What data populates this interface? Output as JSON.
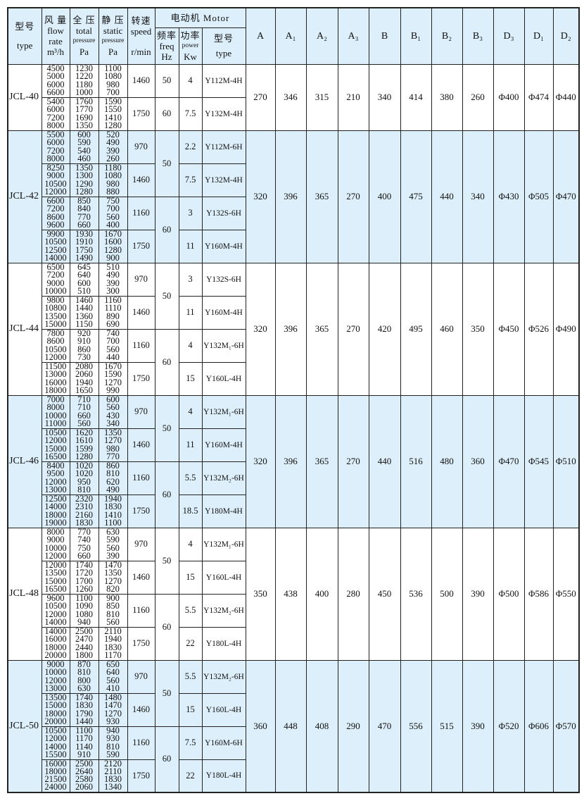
{
  "header": {
    "type": {
      "zh": "型号",
      "en": "type"
    },
    "flow": {
      "zh": "风 量",
      "en1": "flow",
      "en2": "rate",
      "unit": "m³/h"
    },
    "total": {
      "zh": "全 压",
      "en1": "total",
      "en2": "pressure",
      "unit": "Pa"
    },
    "static": {
      "zh": "静 压",
      "en1": "static",
      "en2": "pressure",
      "unit": "Pa"
    },
    "speed": {
      "zh": "转速",
      "en": "speed",
      "unit": "r/min"
    },
    "motor": {
      "title": "电动机 Motor",
      "freq": {
        "zh": "频率",
        "en": "freq",
        "unit": "Hz"
      },
      "power": {
        "zh": "功率",
        "en": "power",
        "unit": "Kw"
      },
      "type": {
        "zh": "型号",
        "en": "type"
      }
    },
    "dims": [
      "A",
      "A₁",
      "A₂",
      "A₃",
      "B",
      "B₁",
      "B₂",
      "B₃",
      "D₃",
      "D₁",
      "D₂"
    ]
  },
  "colors": {
    "header_bg": "#ddeffa",
    "band_bg": "#ddeffa",
    "border": "#222222"
  },
  "groups": [
    {
      "type": "JCL-40",
      "shaded": false,
      "dims": [
        "270",
        "346",
        "315",
        "210",
        "340",
        "414",
        "380",
        "260",
        "Φ400",
        "Φ474",
        "Φ440"
      ],
      "freq": [
        {
          "value": "50",
          "span": 1
        },
        {
          "value": "60",
          "span": 1
        }
      ],
      "rows": [
        {
          "flow": [
            "4500",
            "5000",
            "6000",
            "6600"
          ],
          "total": [
            "1230",
            "1220",
            "1180",
            "1000"
          ],
          "static": [
            "1100",
            "1080",
            "980",
            "700"
          ],
          "speed": "1460",
          "power": "4",
          "motor": "Y112M-4H"
        },
        {
          "flow": [
            "5400",
            "6000",
            "7200",
            "8000"
          ],
          "total": [
            "1760",
            "1770",
            "1690",
            "1350"
          ],
          "static": [
            "1590",
            "1550",
            "1410",
            "1280"
          ],
          "speed": "1750",
          "power": "7.5",
          "motor": "Y132M-4H"
        }
      ]
    },
    {
      "type": "JCL-42",
      "shaded": true,
      "dims": [
        "320",
        "396",
        "365",
        "270",
        "400",
        "475",
        "440",
        "340",
        "Φ430",
        "Φ505",
        "Φ470"
      ],
      "freq": [
        {
          "value": "50",
          "span": 2
        },
        {
          "value": "60",
          "span": 2
        }
      ],
      "rows": [
        {
          "flow": [
            "5500",
            "6000",
            "7200",
            "8000"
          ],
          "total": [
            "600",
            "590",
            "540",
            "460"
          ],
          "static": [
            "520",
            "490",
            "390",
            "260"
          ],
          "speed": "970",
          "power": "2.2",
          "motor": "Y112M-6H"
        },
        {
          "flow": [
            "8250",
            "9000",
            "10500",
            "12000"
          ],
          "total": [
            "1350",
            "1300",
            "1290",
            "1280"
          ],
          "static": [
            "1180",
            "1080",
            "980",
            "880"
          ],
          "speed": "1460",
          "power": "7.5",
          "motor": "Y132M-4H"
        },
        {
          "flow": [
            "6600",
            "7200",
            "8600",
            "9600"
          ],
          "total": [
            "850",
            "840",
            "770",
            "660"
          ],
          "static": [
            "750",
            "700",
            "560",
            "400"
          ],
          "speed": "1160",
          "power": "3",
          "motor": "Y132S-6H"
        },
        {
          "flow": [
            "9900",
            "10500",
            "12500",
            "14000"
          ],
          "total": [
            "1930",
            "1910",
            "1750",
            "1490"
          ],
          "static": [
            "1670",
            "1600",
            "1280",
            "900"
          ],
          "speed": "1750",
          "power": "11",
          "motor": "Y160M-4H"
        }
      ]
    },
    {
      "type": "JCL-44",
      "shaded": false,
      "dims": [
        "320",
        "396",
        "365",
        "270",
        "420",
        "495",
        "460",
        "350",
        "Φ450",
        "Φ526",
        "Φ490"
      ],
      "freq": [
        {
          "value": "50",
          "span": 2
        },
        {
          "value": "60",
          "span": 2
        }
      ],
      "rows": [
        {
          "flow": [
            "6500",
            "7200",
            "9000",
            "10000"
          ],
          "total": [
            "645",
            "640",
            "600",
            "510"
          ],
          "static": [
            "510",
            "490",
            "390",
            "300"
          ],
          "speed": "970",
          "power": "3",
          "motor": "Y132S-6H"
        },
        {
          "flow": [
            "9800",
            "10800",
            "13500",
            "15000"
          ],
          "total": [
            "1460",
            "1440",
            "1360",
            "1150"
          ],
          "static": [
            "1160",
            "1110",
            "890",
            "690"
          ],
          "speed": "1460",
          "power": "11",
          "motor": "Y160M-4H"
        },
        {
          "flow": [
            "7800",
            "8600",
            "10500",
            "12000"
          ],
          "total": [
            "920",
            "910",
            "860",
            "730"
          ],
          "static": [
            "740",
            "700",
            "560",
            "440"
          ],
          "speed": "1160",
          "power": "4",
          "motor": "Y132M₁-6H"
        },
        {
          "flow": [
            "11500",
            "13000",
            "16000",
            "18000"
          ],
          "total": [
            "2080",
            "2060",
            "1940",
            "1650"
          ],
          "static": [
            "1670",
            "1590",
            "1270",
            "990"
          ],
          "speed": "1750",
          "power": "15",
          "motor": "Y160L-4H"
        }
      ]
    },
    {
      "type": "JCL-46",
      "shaded": true,
      "dims": [
        "320",
        "396",
        "365",
        "270",
        "440",
        "516",
        "480",
        "360",
        "Φ470",
        "Φ545",
        "Φ510"
      ],
      "freq": [
        {
          "value": "50",
          "span": 2
        },
        {
          "value": "60",
          "span": 2
        }
      ],
      "rows": [
        {
          "flow": [
            "7000",
            "8000",
            "10000",
            "11000"
          ],
          "total": [
            "710",
            "710",
            "660",
            "560"
          ],
          "static": [
            "600",
            "560",
            "430",
            "340"
          ],
          "speed": "970",
          "power": "4",
          "motor": "Y132M₁-6H"
        },
        {
          "flow": [
            "10500",
            "12000",
            "15000",
            "16500"
          ],
          "total": [
            "1620",
            "1610",
            "1599",
            "1280"
          ],
          "static": [
            "1350",
            "1270",
            "980",
            "770"
          ],
          "speed": "1460",
          "power": "11",
          "motor": "Y160M-4H"
        },
        {
          "flow": [
            "8400",
            "9500",
            "12000",
            "13000"
          ],
          "total": [
            "1020",
            "1020",
            "950",
            "810"
          ],
          "static": [
            "860",
            "810",
            "620",
            "490"
          ],
          "speed": "1160",
          "power": "5.5",
          "motor": "Y132M₂-6H"
        },
        {
          "flow": [
            "12500",
            "14000",
            "18000",
            "19000"
          ],
          "total": [
            "2320",
            "2310",
            "2160",
            "1830"
          ],
          "static": [
            "1940",
            "1830",
            "1410",
            "1100"
          ],
          "speed": "1750",
          "power": "18.5",
          "motor": "Y180M-4H"
        }
      ]
    },
    {
      "type": "JCL-48",
      "shaded": false,
      "dims": [
        "350",
        "438",
        "400",
        "280",
        "450",
        "536",
        "500",
        "390",
        "Φ500",
        "Φ586",
        "Φ550"
      ],
      "freq": [
        {
          "value": "50",
          "span": 2
        },
        {
          "value": "60",
          "span": 2
        }
      ],
      "rows": [
        {
          "flow": [
            "8000",
            "9000",
            "10000",
            "12000"
          ],
          "total": [
            "770",
            "740",
            "750",
            "660"
          ],
          "static": [
            "630",
            "590",
            "560",
            "390"
          ],
          "speed": "970",
          "power": "4",
          "motor": "Y132M₁-6H"
        },
        {
          "flow": [
            "12000",
            "13500",
            "15000",
            "16500"
          ],
          "total": [
            "1740",
            "1720",
            "1700",
            "1260"
          ],
          "static": [
            "1470",
            "1350",
            "1270",
            "820"
          ],
          "speed": "1460",
          "power": "15",
          "motor": "Y160L-4H"
        },
        {
          "flow": [
            "9600",
            "10500",
            "12000",
            "14000"
          ],
          "total": [
            "1100",
            "1090",
            "1080",
            "940"
          ],
          "static": [
            "900",
            "850",
            "810",
            "560"
          ],
          "speed": "1160",
          "power": "5.5",
          "motor": "Y132M₂-6H"
        },
        {
          "flow": [
            "14000",
            "16000",
            "18000",
            "20000"
          ],
          "total": [
            "2500",
            "2470",
            "2440",
            "1800"
          ],
          "static": [
            "2110",
            "1940",
            "1830",
            "1170"
          ],
          "speed": "1750",
          "power": "22",
          "motor": "Y180L-4H"
        }
      ]
    },
    {
      "type": "JCL-50",
      "shaded": true,
      "dims": [
        "360",
        "448",
        "408",
        "290",
        "470",
        "556",
        "515",
        "390",
        "Φ520",
        "Φ606",
        "Φ570"
      ],
      "freq": [
        {
          "value": "50",
          "span": 2
        },
        {
          "value": "60",
          "span": 2
        }
      ],
      "rows": [
        {
          "flow": [
            "9000",
            "10000",
            "12000",
            "13000"
          ],
          "total": [
            "870",
            "810",
            "800",
            "630"
          ],
          "static": [
            "650",
            "640",
            "560",
            "410"
          ],
          "speed": "970",
          "power": "5.5",
          "motor": "Y132M₂-6H"
        },
        {
          "flow": [
            "13500",
            "15000",
            "18000",
            "20000"
          ],
          "total": [
            "1740",
            "1830",
            "1790",
            "1440"
          ],
          "static": [
            "1480",
            "1470",
            "1270",
            "930"
          ],
          "speed": "1460",
          "power": "15",
          "motor": "Y160L-4H"
        },
        {
          "flow": [
            "10500",
            "12000",
            "14000",
            "15500"
          ],
          "total": [
            "1100",
            "1170",
            "1140",
            "910"
          ],
          "static": [
            "940",
            "930",
            "810",
            "590"
          ],
          "speed": "1160",
          "power": "7.5",
          "motor": "Y160M-6H"
        },
        {
          "flow": [
            "16000",
            "18000",
            "21500",
            "24000"
          ],
          "total": [
            "2500",
            "2640",
            "2580",
            "2060"
          ],
          "static": [
            "2120",
            "2110",
            "1830",
            "1340"
          ],
          "speed": "1750",
          "power": "22",
          "motor": "Y180L-4H"
        }
      ]
    }
  ]
}
